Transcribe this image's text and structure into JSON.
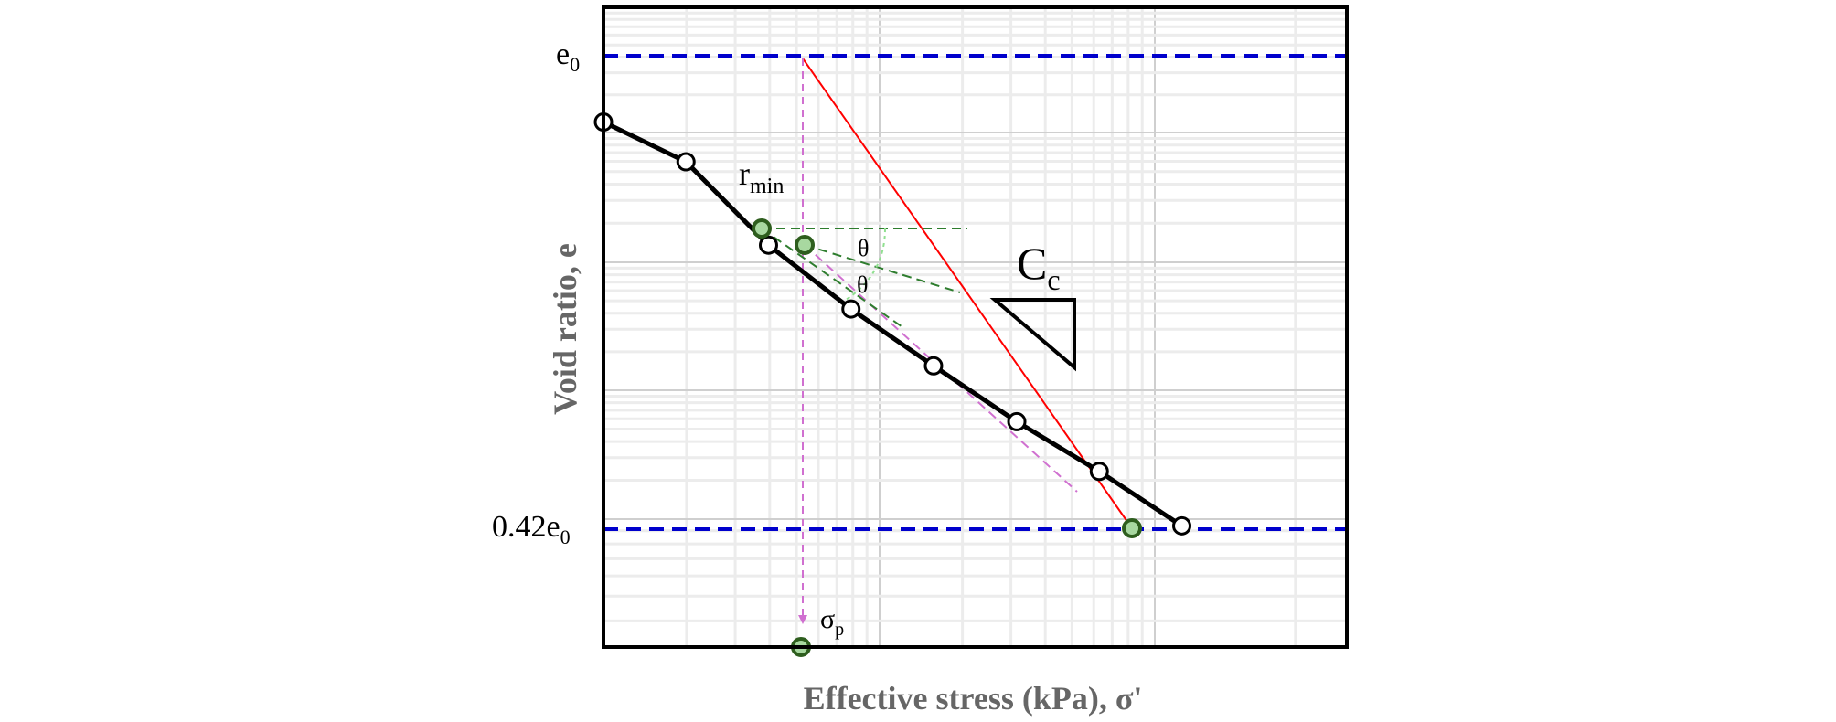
{
  "chart_data": {
    "type": "line",
    "xlabel": "Effective stress (kPa), σ'",
    "ylabel": "Void ratio, e",
    "x_scale": "log",
    "grid": true,
    "reference_lines": [
      {
        "label_main": "e",
        "label_sub": "0",
        "color": "#0000cc"
      },
      {
        "label_main": "0.42e",
        "label_sub": "0",
        "color": "#0000cc"
      }
    ],
    "series": [
      {
        "values": [
          [
            0.0,
            0.86
          ],
          [
            0.111,
            0.776
          ],
          [
            0.222,
            0.6
          ],
          [
            0.333,
            0.465
          ],
          [
            0.444,
            0.345
          ],
          [
            0.556,
            0.227
          ],
          [
            0.667,
            0.122
          ],
          [
            0.778,
            0.007
          ]
        ]
      }
    ],
    "annotations": {
      "r_min": {
        "main": "r",
        "sub": "min"
      },
      "theta": "θ",
      "cc": {
        "main": "C",
        "sub": "c"
      },
      "sigma_p": {
        "main": "σ",
        "sub": "p"
      }
    }
  }
}
